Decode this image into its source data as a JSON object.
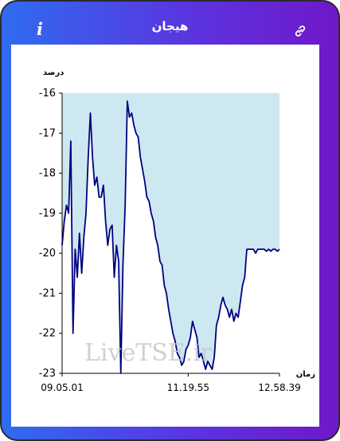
{
  "header": {
    "title": "هیجان",
    "info_icon": "info-icon",
    "link_icon": "link-icon"
  },
  "colors": {
    "gradient_start": "#2f6cf0",
    "gradient_end": "#7018c8",
    "line": "#000080",
    "fill": "#cde8f0",
    "watermark": "#c8c8c8"
  },
  "chart_data": {
    "type": "area",
    "ylabel": "درصد",
    "xlabel": "زمان",
    "watermark": "LiveTSE.ir",
    "ylim": [
      -23,
      -16
    ],
    "yticks": [
      "-16",
      "-17",
      "-18",
      "-19",
      "-20",
      "-21",
      "-22",
      "-23"
    ],
    "xlim": [
      0,
      100
    ],
    "xticks": [
      {
        "label": "09.05.01",
        "pos": 0
      },
      {
        "label": "11.19.55",
        "pos": 58
      },
      {
        "label": "12.58.39",
        "pos": 100
      }
    ],
    "grid": false,
    "x": [
      0,
      1,
      2,
      3,
      4,
      5,
      6,
      7,
      8,
      9,
      10,
      11,
      12,
      13,
      14,
      15,
      16,
      17,
      18,
      19,
      20,
      21,
      22,
      23,
      24,
      25,
      26,
      27,
      28,
      29,
      30,
      31,
      32,
      33,
      34,
      35,
      36,
      37,
      38,
      39,
      40,
      41,
      42,
      43,
      44,
      45,
      46,
      47,
      48,
      49,
      50,
      51,
      52,
      53,
      54,
      55,
      56,
      57,
      58,
      59,
      60,
      61,
      62,
      63,
      64,
      65,
      66,
      67,
      68,
      69,
      70,
      71,
      72,
      73,
      74,
      75,
      76,
      77,
      78,
      79,
      80,
      81,
      82,
      83,
      84,
      85,
      86,
      87,
      88,
      89,
      90,
      91,
      92,
      93,
      94,
      95,
      96,
      97,
      98,
      99,
      100
    ],
    "values": [
      -19.8,
      -19.2,
      -18.8,
      -19.0,
      -17.2,
      -22.0,
      -19.9,
      -20.6,
      -19.5,
      -20.5,
      -19.6,
      -19.0,
      -17.6,
      -16.5,
      -17.6,
      -18.3,
      -18.1,
      -18.6,
      -18.6,
      -18.3,
      -19.2,
      -19.8,
      -19.4,
      -19.3,
      -20.6,
      -19.8,
      -20.2,
      -23.0,
      -20.3,
      -18.8,
      -16.2,
      -16.6,
      -16.5,
      -16.8,
      -17.0,
      -17.1,
      -17.6,
      -17.9,
      -18.2,
      -18.6,
      -18.7,
      -19.0,
      -19.2,
      -19.6,
      -19.8,
      -20.2,
      -20.3,
      -20.8,
      -21.0,
      -21.4,
      -21.7,
      -22.0,
      -22.2,
      -22.5,
      -22.6,
      -22.8,
      -22.7,
      -22.4,
      -22.3,
      -22.1,
      -21.7,
      -21.9,
      -22.1,
      -22.6,
      -22.5,
      -22.7,
      -22.9,
      -22.7,
      -22.8,
      -22.9,
      -22.6,
      -21.8,
      -21.6,
      -21.3,
      -21.1,
      -21.3,
      -21.4,
      -21.6,
      -21.4,
      -21.7,
      -21.5,
      -21.6,
      -21.2,
      -20.8,
      -20.6,
      -19.9,
      -19.9,
      -19.9,
      -19.9,
      -20.0,
      -19.9,
      -19.9,
      -19.9,
      -19.9,
      -19.95,
      -19.9,
      -19.95,
      -19.9,
      -19.9,
      -19.95,
      -19.9
    ]
  }
}
